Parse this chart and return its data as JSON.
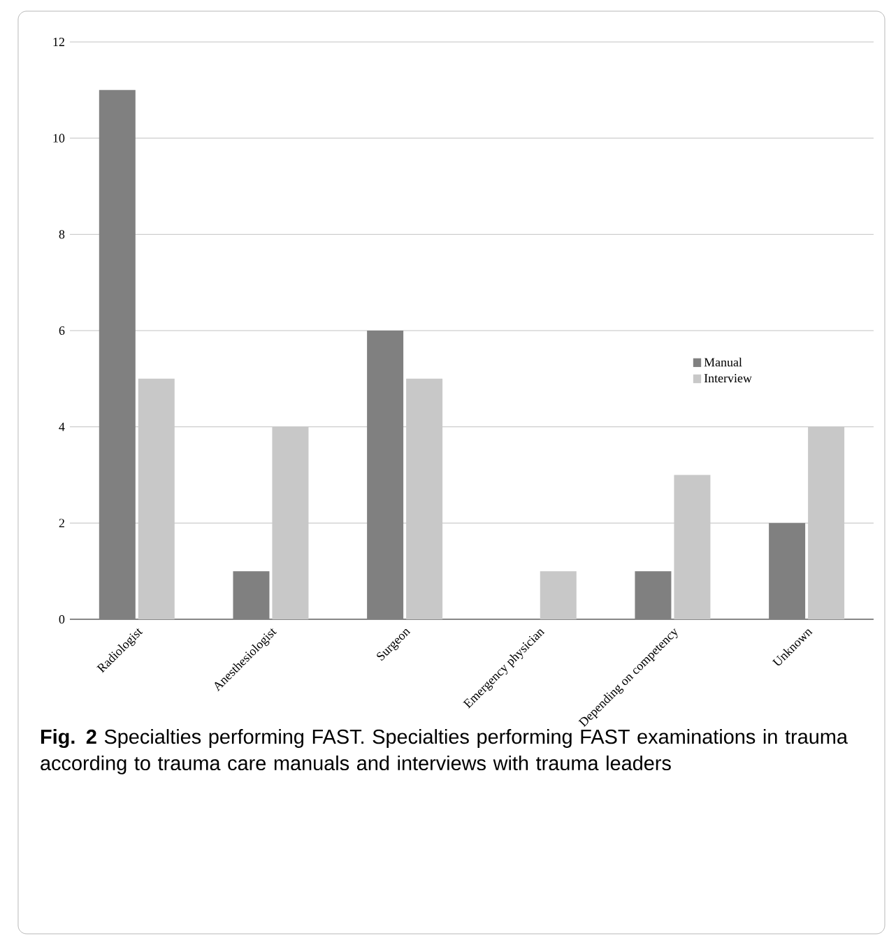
{
  "chart_data": {
    "type": "bar",
    "categories": [
      "Radiologist",
      "Anesthesiologist",
      "Surgeon",
      "Emergency physician",
      "Depending on competency",
      "Unknown"
    ],
    "series": [
      {
        "name": "Manual",
        "color": "#808080",
        "values": [
          11,
          1,
          6,
          0,
          1,
          2
        ]
      },
      {
        "name": "Interview",
        "color": "#c8c8c8",
        "values": [
          5,
          4,
          5,
          1,
          3,
          4
        ]
      }
    ],
    "ylim": [
      0,
      12
    ],
    "yticks": [
      0,
      2,
      4,
      6,
      8,
      10,
      12
    ],
    "grid": "y",
    "legend": "right",
    "annotations": [
      "**Fig. 2** Specialties performing FAST. Specialties performing FAST examinations in trauma according to trauma care manuals and interviews with trauma leaders"
    ]
  }
}
